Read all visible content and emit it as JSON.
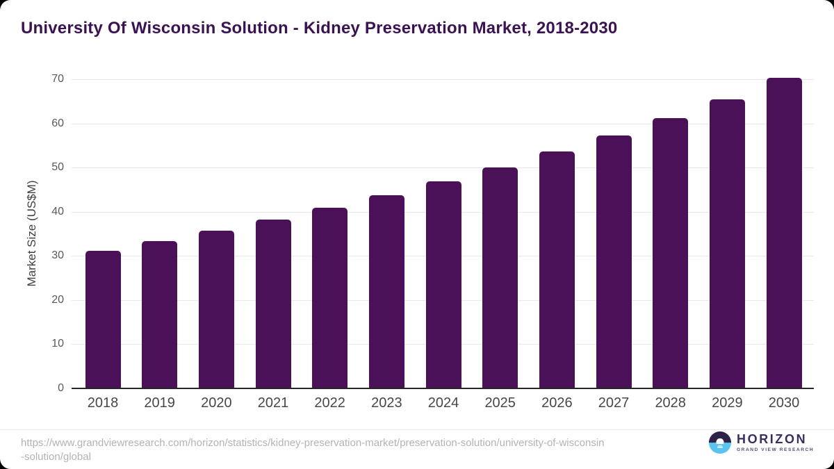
{
  "header": {
    "title": "University Of Wisconsin Solution - Kidney Preservation Market, 2018-2030"
  },
  "chart_data": {
    "type": "bar",
    "title": "University Of Wisconsin Solution - Kidney Preservation Market, 2018-2030",
    "categories": [
      "2018",
      "2019",
      "2020",
      "2021",
      "2022",
      "2023",
      "2024",
      "2025",
      "2026",
      "2027",
      "2028",
      "2029",
      "2030"
    ],
    "values": [
      31.2,
      33.4,
      35.7,
      38.2,
      40.9,
      43.8,
      46.9,
      50.1,
      53.6,
      57.3,
      61.2,
      65.5,
      70.3
    ],
    "xlabel": "",
    "ylabel": "Market Size (US$M)",
    "ylim": [
      0,
      70
    ],
    "yticks": [
      0,
      10,
      20,
      30,
      40,
      50,
      60,
      70
    ],
    "grid": "horizontal-only",
    "legend": "none",
    "bar_color": "#4a1158"
  },
  "footer": {
    "source_line1": "https://www.grandviewresearch.com/horizon/statistics/kidney-preservation-market/preservation-solution/university-of-wisconsin",
    "source_line2": "-solution/global",
    "logo_title": "HORIZON",
    "logo_subtitle": "GRAND VIEW RESEARCH"
  },
  "colors": {
    "bar": "#4a1158",
    "title_text": "#3b1254",
    "axis_text": "#595959",
    "gridline": "#e8e8e8",
    "source_text": "#b3b3b3",
    "logo_dark": "#2e2248",
    "logo_blue": "#59c4f0"
  }
}
